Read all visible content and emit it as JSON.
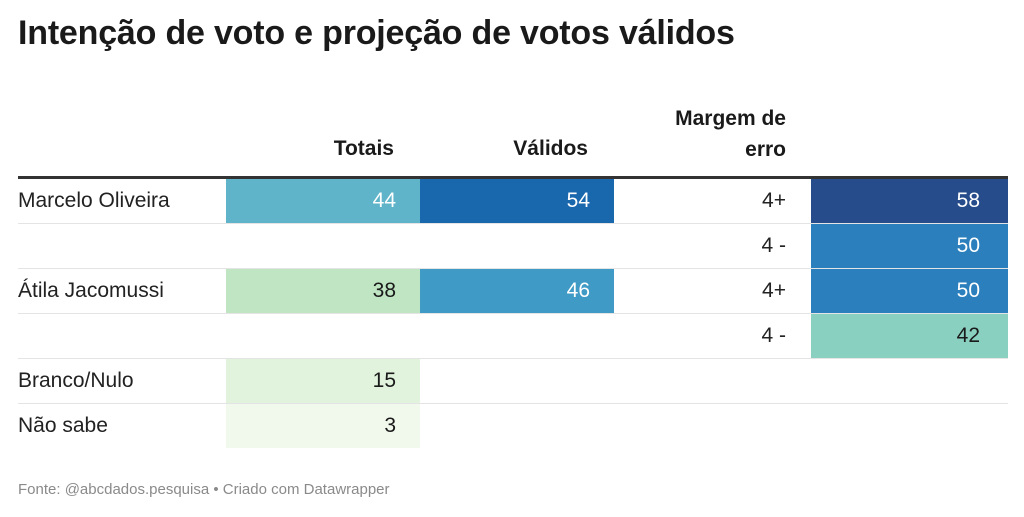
{
  "title": "Intenção de voto e projeção de votos válidos",
  "headers": {
    "totais": "Totais",
    "validos": "Válidos",
    "margem_line1": "Margem de",
    "margem_line2": "erro"
  },
  "footer": "Fonte: @abcdados.pesquisa • Criado com Datawrapper",
  "chart_data": {
    "type": "table",
    "title": "Intenção de voto e projeção de votos válidos",
    "columns": [
      "",
      "Totais",
      "Válidos",
      "Margem de erro",
      ""
    ],
    "rows": [
      {
        "name": "Marcelo Oliveira",
        "totais": "44",
        "validos": "54",
        "margem": "4+",
        "projecao": "58",
        "colors": {
          "totais": "#5fb4c9",
          "validos": "#1967ad",
          "projecao": "#264c8c"
        },
        "text_colors": {
          "totais": "#ffffff",
          "validos": "#ffffff",
          "projecao": "#ffffff"
        }
      },
      {
        "name": "",
        "totais": "",
        "validos": "",
        "margem": "4 -",
        "projecao": "50",
        "colors": {
          "totais": "",
          "validos": "",
          "projecao": "#2a7fbc"
        },
        "text_colors": {
          "totais": "",
          "validos": "",
          "projecao": "#ffffff"
        }
      },
      {
        "name": "Átila Jacomussi",
        "totais": "38",
        "validos": "46",
        "margem": "4+",
        "projecao": "50",
        "colors": {
          "totais": "#bfe5c2",
          "validos": "#3f9ac6",
          "projecao": "#2a7fbc"
        },
        "text_colors": {
          "totais": "#1a1a1a",
          "validos": "#ffffff",
          "projecao": "#ffffff"
        }
      },
      {
        "name": "",
        "totais": "",
        "validos": "",
        "margem": "4 -",
        "projecao": "42",
        "colors": {
          "totais": "",
          "validos": "",
          "projecao": "#89d0c1"
        },
        "text_colors": {
          "totais": "",
          "validos": "",
          "projecao": "#1a1a1a"
        }
      },
      {
        "name": "Branco/Nulo",
        "totais": "15",
        "validos": "",
        "margem": "",
        "projecao": "",
        "colors": {
          "totais": "#e1f3dd",
          "validos": "",
          "projecao": ""
        },
        "text_colors": {
          "totais": "#1a1a1a",
          "validos": "",
          "projecao": ""
        }
      },
      {
        "name": "Não sabe",
        "totais": "3",
        "validos": "",
        "margem": "",
        "projecao": "",
        "colors": {
          "totais": "#f1f9ec",
          "validos": "",
          "projecao": ""
        },
        "text_colors": {
          "totais": "#1a1a1a",
          "validos": "",
          "projecao": ""
        }
      }
    ]
  }
}
